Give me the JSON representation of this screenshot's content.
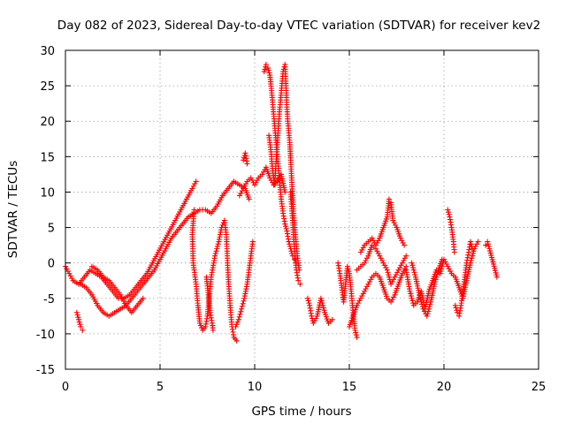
{
  "chart_data": {
    "type": "scatter",
    "title": "Day 082 of 2023, Sidereal Day-to-day VTEC variation (SDTVAR) for receiver kev2",
    "xlabel": "GPS time / hours",
    "ylabel": "SDTVAR / TECUs",
    "xlim": [
      0,
      25
    ],
    "ylim": [
      -15,
      30
    ],
    "xticks": [
      0,
      5,
      10,
      15,
      20,
      25
    ],
    "yticks": [
      -15,
      -10,
      -5,
      0,
      5,
      10,
      15,
      20,
      25,
      30
    ],
    "grid": true,
    "marker": "+",
    "color": "#ff0000",
    "series": [
      {
        "name": "s1",
        "x": [
          0.0,
          0.2,
          0.4,
          0.7,
          1.0,
          1.3,
          1.6,
          1.9,
          2.2,
          2.5,
          2.8,
          3.1,
          3.4,
          3.7,
          4.0,
          4.3,
          4.6,
          4.9,
          5.2,
          5.5,
          5.8,
          6.1,
          6.4,
          6.7,
          6.9
        ],
        "y": [
          -0.5,
          -1.5,
          -2.5,
          -3.0,
          -2.0,
          -1.0,
          -1.5,
          -2.0,
          -3.0,
          -4.0,
          -5.0,
          -5.0,
          -4.5,
          -3.5,
          -2.5,
          -1.5,
          0.0,
          1.5,
          3.0,
          4.5,
          6.0,
          7.5,
          9.0,
          10.5,
          11.5
        ]
      },
      {
        "name": "s2",
        "x": [
          0.8,
          1.1,
          1.4,
          1.7,
          2.0,
          2.3,
          2.6,
          2.9,
          3.2,
          3.5,
          3.8,
          4.1,
          4.4,
          4.7,
          5.0,
          5.3,
          5.6,
          5.9,
          6.2,
          6.5,
          6.8,
          7.1,
          7.4,
          7.7,
          8.0,
          8.3,
          8.6,
          8.9,
          9.2,
          9.5,
          9.7
        ],
        "y": [
          -3.0,
          -3.5,
          -4.5,
          -6.0,
          -7.0,
          -7.5,
          -7.0,
          -6.5,
          -6.0,
          -5.0,
          -4.0,
          -3.0,
          -2.0,
          -1.0,
          0.5,
          2.0,
          3.5,
          4.5,
          5.5,
          6.5,
          7.0,
          7.5,
          7.5,
          7.0,
          8.0,
          9.5,
          10.5,
          11.5,
          11.0,
          10.5,
          9.0
        ]
      },
      {
        "name": "s3",
        "x": [
          0.6,
          0.7,
          0.8,
          0.9
        ],
        "y": [
          -7.0,
          -8.0,
          -9.0,
          -9.5
        ]
      },
      {
        "name": "s4",
        "x": [
          1.4,
          1.7,
          2.0,
          2.3,
          2.6,
          2.9,
          3.2,
          3.5,
          3.8,
          4.1
        ],
        "y": [
          -0.5,
          -1.0,
          -2.0,
          -2.5,
          -3.5,
          -4.5,
          -6.0,
          -7.0,
          -6.0,
          -5.0
        ]
      },
      {
        "name": "s5",
        "x": [
          6.8,
          6.7,
          6.75,
          6.9,
          7.0,
          7.1,
          7.25,
          7.4,
          7.5,
          7.6,
          7.7,
          7.9,
          8.1,
          8.25,
          8.4,
          8.5,
          8.55,
          8.6,
          8.7,
          8.8,
          8.9,
          9.05
        ],
        "y": [
          7.5,
          4.0,
          0.0,
          -3.0,
          -6.0,
          -8.5,
          -9.5,
          -9.0,
          -7.5,
          -5.0,
          -2.0,
          1.0,
          3.0,
          5.0,
          6.0,
          4.0,
          1.0,
          -2.0,
          -6.0,
          -9.0,
          -10.5,
          -11.0
        ]
      },
      {
        "name": "s6",
        "x": [
          7.45,
          7.55,
          7.65,
          7.75,
          7.8
        ],
        "y": [
          -2.0,
          -4.5,
          -7.0,
          -8.5,
          -9.5
        ]
      },
      {
        "name": "s7",
        "x": [
          9.0,
          9.15,
          9.3,
          9.45,
          9.6,
          9.7,
          9.8,
          9.9
        ],
        "y": [
          -9.0,
          -8.0,
          -6.5,
          -5.0,
          -3.0,
          -1.0,
          1.0,
          3.0
        ]
      },
      {
        "name": "s8",
        "x": [
          9.2,
          9.4,
          9.6,
          9.8,
          10.0,
          10.2,
          10.4,
          10.6,
          10.8,
          11.0,
          11.2,
          11.4,
          11.6
        ],
        "y": [
          9.5,
          10.5,
          11.5,
          12.0,
          11.0,
          12.0,
          12.5,
          13.5,
          12.0,
          11.0,
          11.5,
          12.5,
          10.0
        ]
      },
      {
        "name": "s9",
        "x": [
          9.4,
          9.5,
          9.6
        ],
        "y": [
          14.5,
          15.5,
          14.0
        ]
      },
      {
        "name": "s10",
        "x": [
          10.5,
          10.6,
          10.7,
          10.8,
          10.9,
          11.0,
          11.1,
          11.2,
          11.3,
          11.4,
          11.5,
          11.6,
          11.7,
          11.8,
          11.9,
          12.0,
          12.1,
          12.2
        ],
        "y": [
          27.0,
          28.0,
          27.5,
          26.5,
          24.0,
          21.0,
          18.0,
          15.0,
          12.0,
          9.0,
          7.0,
          5.5,
          4.5,
          3.0,
          2.0,
          1.0,
          0.5,
          0.0
        ]
      },
      {
        "name": "s11",
        "x": [
          10.75,
          10.85,
          10.95,
          11.05,
          11.1,
          11.2,
          11.3,
          11.4,
          11.5,
          11.6,
          11.65,
          11.7,
          11.75,
          11.85,
          11.95,
          12.05,
          12.15,
          12.25,
          12.35
        ],
        "y": [
          18.0,
          16.0,
          13.0,
          11.0,
          13.0,
          17.0,
          21.0,
          24.0,
          27.0,
          28.0,
          25.0,
          22.0,
          20.0,
          17.0,
          12.0,
          7.0,
          4.0,
          1.0,
          -1.0
        ]
      },
      {
        "name": "s12",
        "x": [
          11.9,
          12.0,
          12.1,
          12.2,
          12.3,
          12.4
        ],
        "y": [
          10.0,
          6.0,
          2.0,
          -1.0,
          -2.5,
          -3.0
        ]
      },
      {
        "name": "s13",
        "x": [
          12.8,
          12.9,
          13.0,
          13.1,
          13.3,
          13.5,
          13.7,
          13.9,
          14.1
        ],
        "y": [
          -5.0,
          -6.0,
          -7.5,
          -8.5,
          -7.5,
          -5.0,
          -7.0,
          -8.5,
          -8.0
        ]
      },
      {
        "name": "s14",
        "x": [
          14.4,
          14.5,
          14.6,
          14.7,
          14.8,
          14.9,
          15.0,
          15.1,
          15.2,
          15.3,
          15.4
        ],
        "y": [
          0.0,
          -1.5,
          -3.5,
          -5.5,
          -3.0,
          -0.5,
          -1.5,
          -4.0,
          -7.0,
          -9.5,
          -10.5
        ]
      },
      {
        "name": "s15",
        "x": [
          15.0,
          15.2,
          15.4,
          15.6,
          15.8,
          16.0,
          16.2,
          16.4,
          16.6,
          16.8,
          17.0,
          17.2,
          17.4,
          17.6,
          17.8,
          18.0
        ],
        "y": [
          -9.0,
          -7.5,
          -6.0,
          -5.0,
          -4.0,
          -3.0,
          -2.0,
          -1.5,
          -2.0,
          -3.5,
          -5.0,
          -5.5,
          -4.5,
          -3.0,
          -1.5,
          -0.5
        ]
      },
      {
        "name": "s16",
        "x": [
          15.6,
          15.8,
          16.0,
          16.2,
          16.4,
          16.6,
          16.8,
          17.0,
          17.1,
          17.2,
          17.3,
          17.5,
          17.7,
          17.9
        ],
        "y": [
          1.5,
          2.5,
          3.0,
          3.5,
          2.5,
          3.5,
          5.0,
          6.5,
          9.0,
          8.5,
          6.0,
          5.0,
          3.5,
          2.5
        ]
      },
      {
        "name": "s17",
        "x": [
          15.4,
          15.6,
          15.8,
          16.0,
          16.2,
          16.4,
          16.6,
          16.8,
          17.0,
          17.2,
          17.4,
          17.6,
          17.8,
          18.0
        ],
        "y": [
          -1.0,
          -0.5,
          0.0,
          1.0,
          2.5,
          2.0,
          1.0,
          0.0,
          -1.0,
          -3.0,
          -2.0,
          -1.0,
          0.0,
          1.0
        ]
      },
      {
        "name": "s18",
        "x": [
          18.0,
          18.2,
          18.4,
          18.6,
          18.8,
          19.0,
          19.2,
          19.4,
          19.6,
          19.8,
          20.0,
          20.2,
          20.4,
          20.6,
          20.8,
          21.0,
          21.2,
          21.4,
          21.6,
          21.8
        ],
        "y": [
          -1.0,
          -4.0,
          -6.0,
          -5.5,
          -4.0,
          -6.5,
          -4.0,
          -2.5,
          -1.0,
          -1.5,
          0.5,
          -0.5,
          -1.5,
          -2.0,
          -3.5,
          -5.0,
          -2.5,
          0.0,
          2.0,
          3.0
        ]
      },
      {
        "name": "s19",
        "x": [
          18.3,
          18.5,
          18.7,
          18.9,
          19.1,
          19.3,
          19.5,
          19.7,
          19.9
        ],
        "y": [
          0.0,
          -2.0,
          -4.5,
          -6.5,
          -7.5,
          -5.5,
          -3.0,
          -1.0,
          0.5
        ]
      },
      {
        "name": "s20",
        "x": [
          20.2,
          20.3,
          20.4,
          20.5,
          20.55
        ],
        "y": [
          7.5,
          6.5,
          5.0,
          3.0,
          1.5
        ]
      },
      {
        "name": "s21",
        "x": [
          20.6,
          20.7,
          20.8,
          20.9,
          21.0,
          21.1,
          21.2,
          21.3,
          21.4,
          21.5
        ],
        "y": [
          -6.0,
          -7.0,
          -7.5,
          -6.0,
          -4.0,
          -2.0,
          0.0,
          1.5,
          3.0,
          2.0
        ]
      },
      {
        "name": "s22",
        "x": [
          22.2,
          22.3,
          22.4,
          22.8
        ],
        "y": [
          2.5,
          3.0,
          2.0,
          -2.0
        ]
      }
    ]
  }
}
